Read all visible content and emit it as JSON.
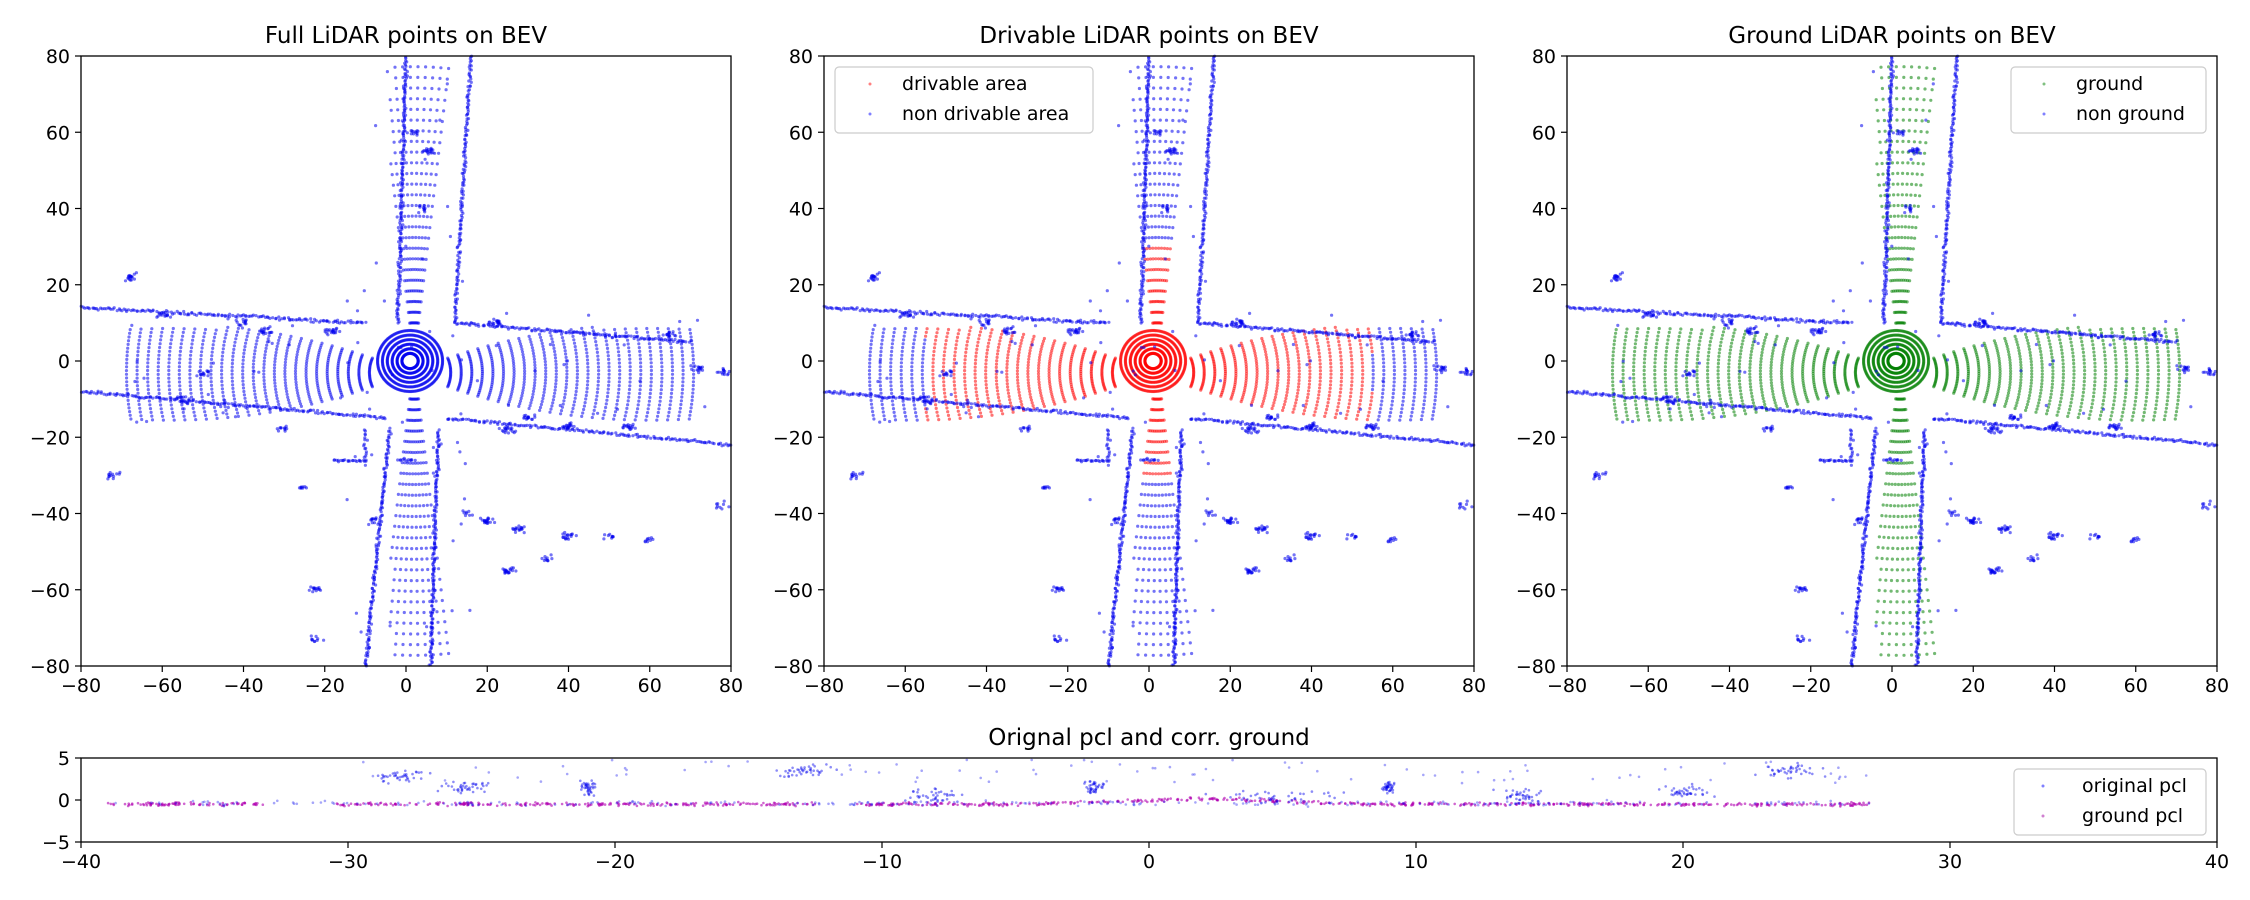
{
  "chart_data": [
    {
      "type": "scatter",
      "title": "Full LiDAR points on BEV",
      "xlim": [
        -80,
        80
      ],
      "ylim": [
        -80,
        80
      ],
      "xticks": [
        "−80",
        "−60",
        "−40",
        "−20",
        "0",
        "20",
        "40",
        "60",
        "80"
      ],
      "yticks": [
        "80",
        "60",
        "40",
        "20",
        "0",
        "−20",
        "−40",
        "−60",
        "−80"
      ],
      "grid": false,
      "legend": null,
      "colors": {
        "points": "#0000ee"
      },
      "series": [
        {
          "color": "#0000ee",
          "pattern": "full intersection point cloud: concentric rings around origin (radius 2-8) and road corridors along x=-2..12 and y=-20..10"
        }
      ]
    },
    {
      "type": "scatter",
      "title": "Drivable LiDAR points on BEV",
      "xlim": [
        -80,
        80
      ],
      "ylim": [
        -80,
        80
      ],
      "xticks": [
        "−80",
        "−60",
        "−40",
        "−20",
        "0",
        "20",
        "40",
        "60",
        "80"
      ],
      "yticks": [
        "80",
        "60",
        "40",
        "20",
        "0",
        "−20",
        "−40",
        "−60",
        "−80"
      ],
      "grid": false,
      "legend_position": "upper-left",
      "series": [
        {
          "name": "drivable area",
          "color": "#ff0000"
        },
        {
          "name": "non drivable area",
          "color": "#0000ee"
        }
      ]
    },
    {
      "type": "scatter",
      "title": "Ground LiDAR points on BEV",
      "xlim": [
        -80,
        80
      ],
      "ylim": [
        -80,
        80
      ],
      "xticks": [
        "−80",
        "−60",
        "−40",
        "−20",
        "0",
        "20",
        "40",
        "60",
        "80"
      ],
      "yticks": [
        "80",
        "60",
        "40",
        "20",
        "0",
        "−20",
        "−40",
        "−60",
        "−80"
      ],
      "grid": false,
      "legend_position": "upper-right",
      "series": [
        {
          "name": "ground",
          "color": "#008000"
        },
        {
          "name": "non ground",
          "color": "#0000ee"
        }
      ]
    },
    {
      "type": "scatter",
      "title": "Orignal pcl and corr. ground",
      "xlim": [
        -40,
        40
      ],
      "ylim": [
        -5,
        5
      ],
      "xticks": [
        "−40",
        "−30",
        "−20",
        "−10",
        "0",
        "10",
        "20",
        "30",
        "40"
      ],
      "yticks": [
        "5",
        "0",
        "−5"
      ],
      "grid": false,
      "legend_position": "upper-right",
      "series": [
        {
          "name": "original pcl",
          "color": "#0000ee"
        },
        {
          "name": "ground pcl",
          "color": "#b000b0"
        }
      ]
    }
  ]
}
